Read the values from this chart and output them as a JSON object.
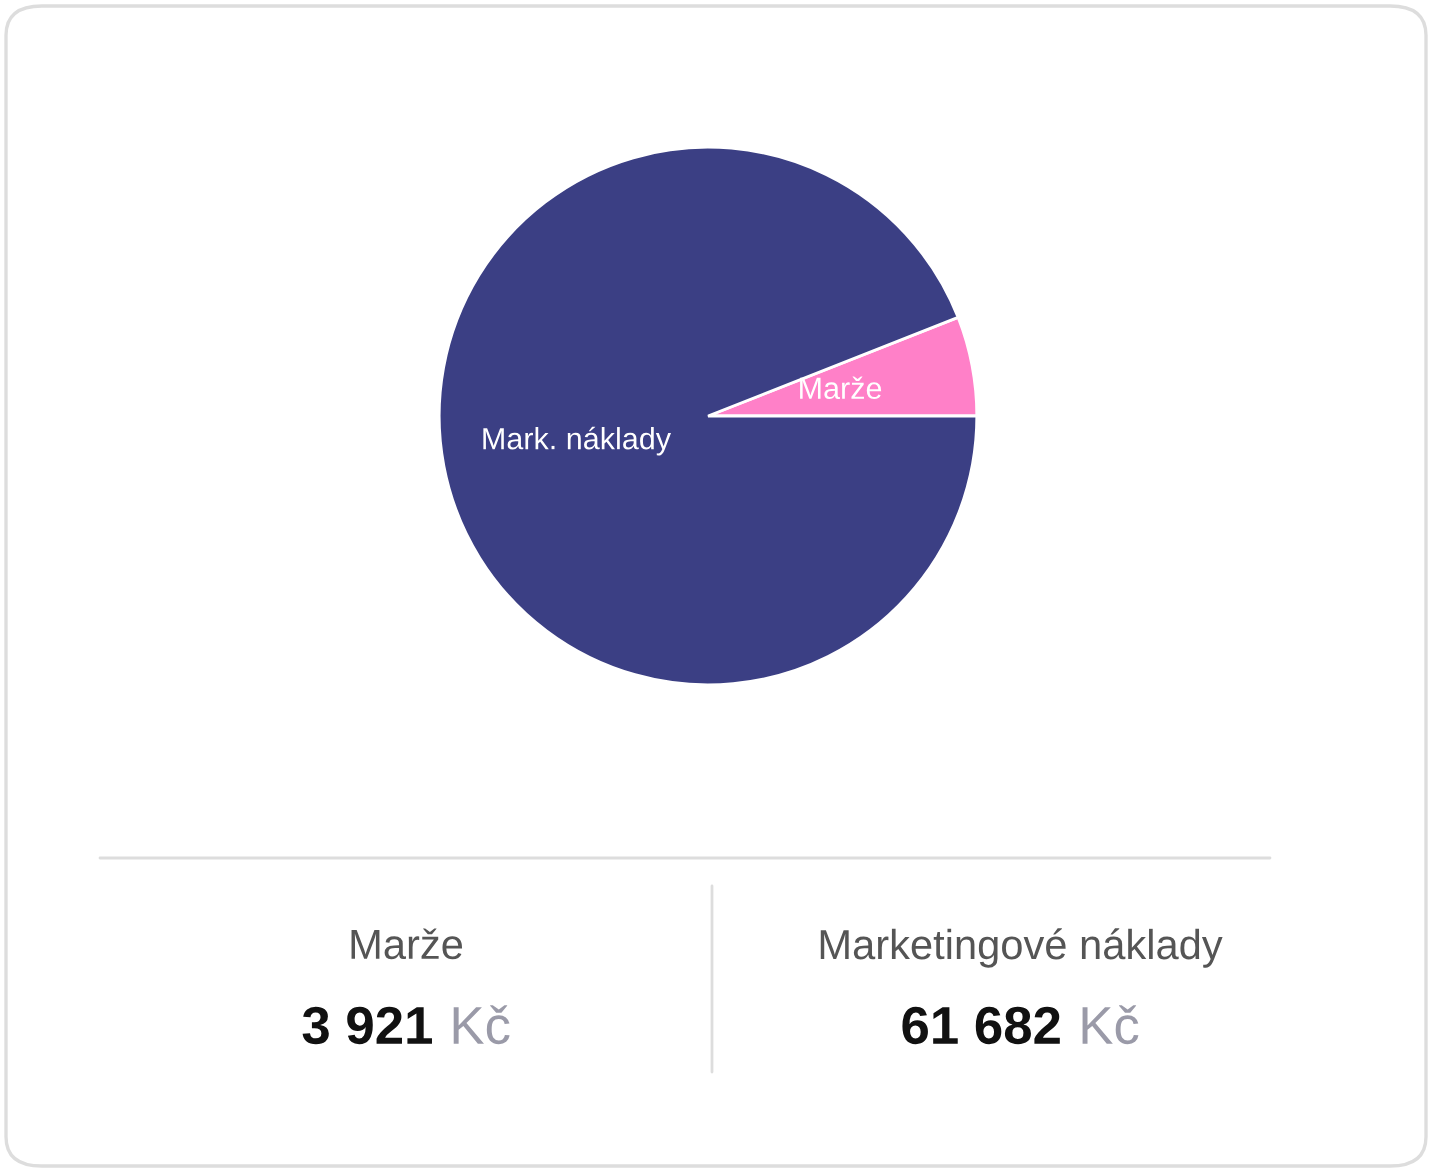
{
  "chart_data": {
    "type": "pie",
    "categories": [
      "Marže",
      "Mark. náklady"
    ],
    "values": [
      5.98,
      94.02
    ],
    "colors": [
      "#ff80c8",
      "#3b3f84"
    ],
    "annotations": [
      "Marže",
      "3 921",
      "Kč",
      "Marketingové náklady",
      "61 682",
      "Kč"
    ]
  }
}
